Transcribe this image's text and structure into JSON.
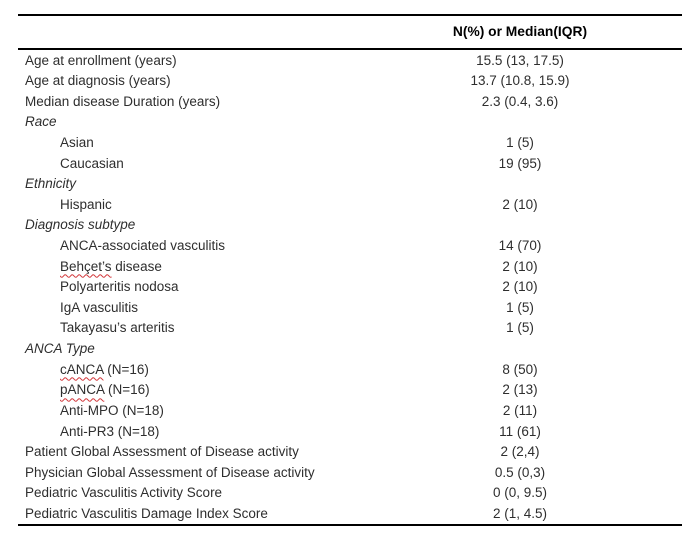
{
  "colors": {
    "rule": "#000000",
    "body_text": "#2e2e2e",
    "spellcheck_underline": "#d13438"
  },
  "table": {
    "header": {
      "label_column": "",
      "value_column": "N(%) or Median(IQR)"
    },
    "rows": [
      {
        "label": "Age at enrollment (years)",
        "value": "15.5 (13, 17.5)"
      },
      {
        "label": "Age at diagnosis (years)",
        "value": "13.7 (10.8, 15.9)"
      },
      {
        "label": "Median disease Duration (years)",
        "value": "2.3 (0.4, 3.6)"
      },
      {
        "label": "Race",
        "group": true
      },
      {
        "label": "Asian",
        "value": "1 (5)",
        "indent": true
      },
      {
        "label": "Caucasian",
        "value": "19 (95)",
        "indent": true
      },
      {
        "label": "Ethnicity",
        "group": true
      },
      {
        "label": "Hispanic",
        "value": "2 (10)",
        "indent": true
      },
      {
        "label": "Diagnosis subtype",
        "group": true
      },
      {
        "label": "ANCA-associated vasculitis",
        "value": "14 (70)",
        "indent": true
      },
      {
        "label_mark": "Behçet’s",
        "label_rest": " disease",
        "value": "2 (10)",
        "indent": true,
        "spellcheck_marked": true
      },
      {
        "label": "Polyarteritis nodosa",
        "value": "2 (10)",
        "indent": true
      },
      {
        "label": "IgA vasculitis",
        "value": "1 (5)",
        "indent": true
      },
      {
        "label": "Takayasu’s arteritis",
        "value": "1 (5)",
        "indent": true
      },
      {
        "label": "ANCA Type",
        "group": true
      },
      {
        "label_mark": "cANCA",
        "label_rest": " (N=16)",
        "value": "8 (50)",
        "indent": true,
        "spellcheck_marked": true
      },
      {
        "label_mark": "pANCA",
        "label_rest": " (N=16)",
        "value": "2 (13)",
        "indent": true,
        "spellcheck_marked": true
      },
      {
        "label": "Anti-MPO (N=18)",
        "value": "2 (11)",
        "indent": true
      },
      {
        "label": "Anti-PR3 (N=18)",
        "value": "11 (61)",
        "indent": true
      },
      {
        "label": "Patient Global Assessment of Disease activity",
        "value": "2 (2,4)"
      },
      {
        "label": "Physician Global Assessment of Disease activity",
        "value": "0.5 (0,3)"
      },
      {
        "label": "Pediatric Vasculitis Activity Score",
        "value": "0 (0, 9.5)"
      },
      {
        "label": "Pediatric Vasculitis Damage Index Score",
        "value": "2 (1, 4.5)"
      }
    ]
  }
}
